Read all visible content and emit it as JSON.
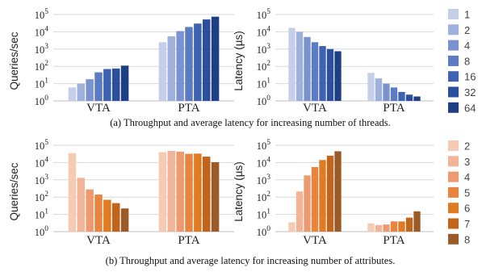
{
  "figure": {
    "caption_a": "(a) Throughput and average latency for increasing number of threads.",
    "caption_b": "(b) Throughput and average latency for increasing number of attributes."
  },
  "legends": [
    {
      "labels": [
        "1",
        "2",
        "4",
        "8",
        "16",
        "32",
        "64"
      ],
      "colors": [
        "#c5cfe9",
        "#9eb0dc",
        "#7a93cf",
        "#5b7cc4",
        "#3e63b3",
        "#2b4f9f",
        "#1f3f85"
      ]
    },
    {
      "labels": [
        "2",
        "3",
        "4",
        "5",
        "6",
        "7",
        "8"
      ],
      "colors": [
        "#f6cbb4",
        "#f2b396",
        "#ee9a70",
        "#e9843f",
        "#e07b24",
        "#c2651b",
        "#9c5a26"
      ]
    }
  ],
  "chart_data": [
    {
      "type": "bar",
      "ylabel": "Queries/sec",
      "yscale": "log",
      "ylim": [
        1,
        100000
      ],
      "yticks": [
        "10^0",
        "10^1",
        "10^2",
        "10^3",
        "10^4",
        "10^5"
      ],
      "categories": [
        "VTA",
        "PTA"
      ],
      "series": [
        {
          "name": "1",
          "values": [
            6,
            2500
          ]
        },
        {
          "name": "2",
          "values": [
            10,
            5500
          ]
        },
        {
          "name": "4",
          "values": [
            18,
            11000
          ]
        },
        {
          "name": "8",
          "values": [
            45,
            19000
          ]
        },
        {
          "name": "16",
          "values": [
            70,
            30000
          ]
        },
        {
          "name": "32",
          "values": [
            75,
            52000
          ]
        },
        {
          "name": "64",
          "values": [
            110,
            75000
          ]
        }
      ]
    },
    {
      "type": "bar",
      "ylabel": "Latency (µs)",
      "yscale": "log",
      "ylim": [
        1,
        100000
      ],
      "yticks": [
        "10^0",
        "10^1",
        "10^2",
        "10^3",
        "10^4",
        "10^5"
      ],
      "categories": [
        "VTA",
        "PTA"
      ],
      "series": [
        {
          "name": "1",
          "values": [
            17000,
            42
          ]
        },
        {
          "name": "2",
          "values": [
            10000,
            20
          ]
        },
        {
          "name": "4",
          "values": [
            5000,
            10
          ]
        },
        {
          "name": "8",
          "values": [
            2500,
            6
          ]
        },
        {
          "name": "16",
          "values": [
            1500,
            3.3
          ]
        },
        {
          "name": "32",
          "values": [
            1000,
            2.3
          ]
        },
        {
          "name": "64",
          "values": [
            750,
            1.8
          ]
        }
      ]
    },
    {
      "type": "bar",
      "ylabel": "Queries/sec",
      "yscale": "log",
      "ylim": [
        1,
        100000
      ],
      "yticks": [
        "10^0",
        "10^1",
        "10^2",
        "10^3",
        "10^4",
        "10^5"
      ],
      "categories": [
        "VTA",
        "PTA"
      ],
      "series": [
        {
          "name": "2",
          "values": [
            35000,
            40000
          ]
        },
        {
          "name": "3",
          "values": [
            1300,
            47000
          ]
        },
        {
          "name": "4",
          "values": [
            280,
            43000
          ]
        },
        {
          "name": "5",
          "values": [
            140,
            32000
          ]
        },
        {
          "name": "6",
          "values": [
            70,
            33000
          ]
        },
        {
          "name": "7",
          "values": [
            45,
            22000
          ]
        },
        {
          "name": "8",
          "values": [
            22,
            10500
          ]
        }
      ]
    },
    {
      "type": "bar",
      "ylabel": "Latency (µs)",
      "yscale": "log",
      "ylim": [
        1,
        100000
      ],
      "yticks": [
        "10^0",
        "10^1",
        "10^2",
        "10^3",
        "10^4",
        "10^5"
      ],
      "categories": [
        "VTA",
        "PTA"
      ],
      "series": [
        {
          "name": "2",
          "values": [
            3.5,
            3.0
          ]
        },
        {
          "name": "3",
          "values": [
            210,
            2.4
          ]
        },
        {
          "name": "4",
          "values": [
            1800,
            2.6
          ]
        },
        {
          "name": "5",
          "values": [
            5500,
            3.9
          ]
        },
        {
          "name": "6",
          "values": [
            14000,
            3.9
          ]
        },
        {
          "name": "7",
          "values": [
            25000,
            6.5
          ]
        },
        {
          "name": "8",
          "values": [
            45000,
            15
          ]
        }
      ]
    }
  ]
}
